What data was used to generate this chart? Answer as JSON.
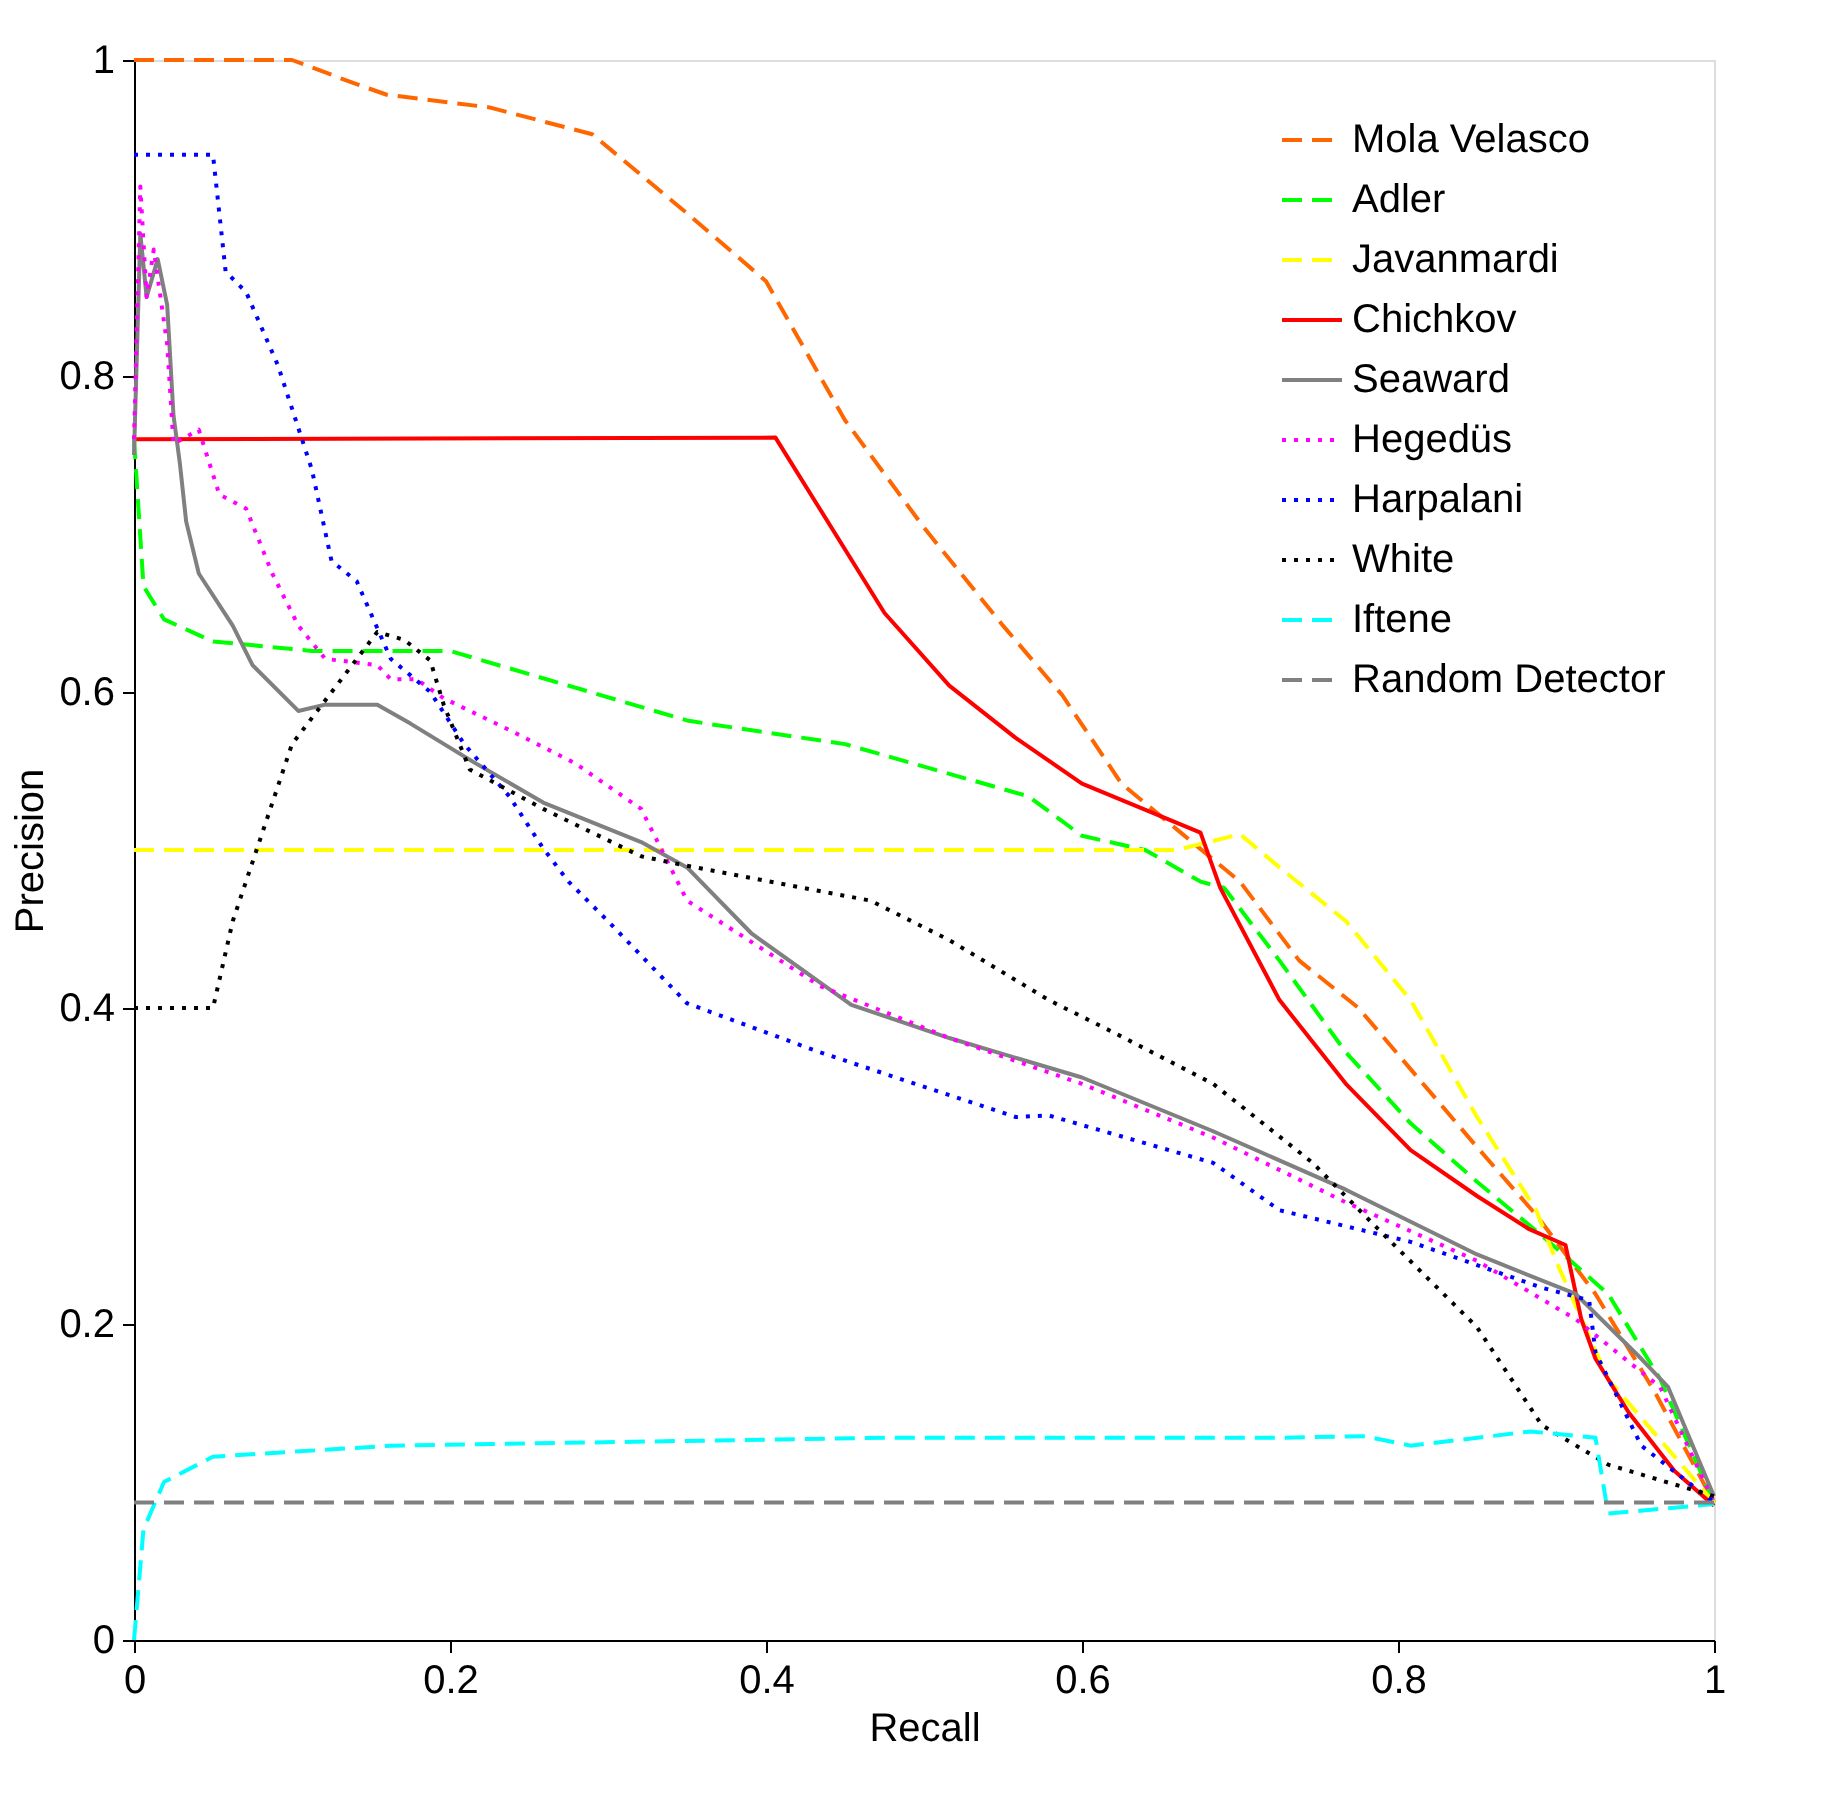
{
  "chart_data": {
    "type": "line",
    "xlabel": "Recall",
    "ylabel": "Precision",
    "xlim": [
      0,
      1
    ],
    "ylim": [
      0,
      1
    ],
    "xticks": [
      0,
      0.2,
      0.4,
      0.6,
      0.8,
      1
    ],
    "yticks": [
      0,
      0.2,
      0.4,
      0.6,
      0.8,
      1
    ],
    "grid": false,
    "legend": "top right",
    "marker": "none",
    "series": [
      {
        "name": "Mola Velasco",
        "color": "#ff6600",
        "line_style": "dashed",
        "x": [
          0,
          0.1,
          0.14,
          0.16,
          0.225,
          0.29,
          0.35,
          0.4,
          0.45,
          0.5,
          0.55,
          0.5875,
          0.625,
          0.6625,
          0.7,
          0.7375,
          0.775,
          0.8125,
          0.85,
          0.8875,
          0.925,
          0.9625,
          1
        ],
        "values": [
          1,
          1,
          0.985,
          0.978,
          0.97,
          0.953,
          0.903,
          0.86,
          0.772,
          0.704,
          0.642,
          0.598,
          0.542,
          0.511,
          0.48,
          0.43,
          0.4,
          0.356,
          0.312,
          0.269,
          0.219,
          0.157,
          0.087
        ]
      },
      {
        "name": "Adler",
        "color": "#00ff00",
        "line_style": "dashed",
        "x": [
          0,
          0.006,
          0.019,
          0.05,
          0.1125,
          0.2,
          0.35,
          0.3625,
          0.45,
          0.566,
          0.6,
          0.64,
          0.675,
          0.69,
          0.725,
          0.767,
          0.808,
          0.85,
          0.891,
          0.933,
          0.966,
          1
        ],
        "values": [
          0.76,
          0.667,
          0.646,
          0.632,
          0.626,
          0.626,
          0.582,
          0.58,
          0.567,
          0.534,
          0.509,
          0.5,
          0.48,
          0.476,
          0.43,
          0.372,
          0.327,
          0.29,
          0.256,
          0.219,
          0.165,
          0.087
        ]
      },
      {
        "name": "Javanmardi",
        "color": "#ffff00",
        "line_style": "dashed",
        "x": [
          0,
          0.66,
          0.7,
          0.725,
          0.767,
          0.808,
          0.85,
          0.8875,
          0.9,
          0.933,
          1
        ],
        "values": [
          0.5,
          0.5,
          0.51,
          0.489,
          0.455,
          0.405,
          0.331,
          0.272,
          0.24,
          0.165,
          0.087
        ]
      },
      {
        "name": "Chichkov",
        "color": "#ff0000",
        "line_style": "solid",
        "x": [
          0,
          0.406,
          0.434,
          0.475,
          0.516,
          0.558,
          0.6,
          0.675,
          0.6875,
          0.725,
          0.767,
          0.808,
          0.85,
          0.883,
          0.906,
          0.916,
          0.925,
          0.946,
          0.975,
          1
        ],
        "values": [
          0.76,
          0.761,
          0.716,
          0.65,
          0.604,
          0.571,
          0.542,
          0.511,
          0.476,
          0.405,
          0.352,
          0.31,
          0.281,
          0.26,
          0.25,
          0.203,
          0.178,
          0.144,
          0.107,
          0.085
        ]
      },
      {
        "name": "Seaward",
        "color": "#808080",
        "line_style": "solid",
        "x": [
          0,
          0.004,
          0.008,
          0.015,
          0.021,
          0.025,
          0.029,
          0.033,
          0.041,
          0.0625,
          0.075,
          0.104,
          0.121,
          0.154,
          0.175,
          0.216,
          0.259,
          0.321,
          0.35,
          0.391,
          0.454,
          0.516,
          0.6,
          0.683,
          0.767,
          0.85,
          0.9125,
          0.954,
          0.971,
          1
        ],
        "values": [
          0.75,
          0.89,
          0.85,
          0.874,
          0.845,
          0.775,
          0.745,
          0.708,
          0.675,
          0.642,
          0.617,
          0.588,
          0.592,
          0.592,
          0.58,
          0.555,
          0.53,
          0.505,
          0.489,
          0.447,
          0.402,
          0.381,
          0.356,
          0.322,
          0.285,
          0.244,
          0.219,
          0.178,
          0.16,
          0.091
        ]
      },
      {
        "name": "Hegedüs",
        "color": "#ff00ff",
        "line_style": "dotted",
        "x": [
          0,
          0.004,
          0.008,
          0.0125,
          0.021,
          0.025,
          0.041,
          0.054,
          0.071,
          0.0875,
          0.104,
          0.121,
          0.154,
          0.1625,
          0.179,
          0.196,
          0.2375,
          0.279,
          0.321,
          0.35,
          0.434,
          0.516,
          0.6,
          0.683,
          0.767,
          0.85,
          0.9125,
          0.966,
          1
        ],
        "values": [
          0.76,
          0.92,
          0.85,
          0.88,
          0.82,
          0.757,
          0.766,
          0.725,
          0.716,
          0.675,
          0.642,
          0.621,
          0.617,
          0.608,
          0.608,
          0.596,
          0.576,
          0.555,
          0.526,
          0.468,
          0.414,
          0.381,
          0.352,
          0.318,
          0.277,
          0.24,
          0.203,
          0.16,
          0.087
        ]
      },
      {
        "name": "Harpalani",
        "color": "#0000ff",
        "line_style": "dotted",
        "x": [
          0,
          0.05,
          0.058,
          0.071,
          0.091,
          0.1125,
          0.125,
          0.141,
          0.1625,
          0.1875,
          0.209,
          0.2375,
          0.259,
          0.275,
          0.3,
          0.35,
          0.434,
          0.558,
          0.579,
          0.683,
          0.725,
          0.808,
          0.891,
          0.921,
          0.925,
          0.954,
          1
        ],
        "values": [
          0.94,
          0.94,
          0.866,
          0.853,
          0.807,
          0.741,
          0.683,
          0.67,
          0.621,
          0.6,
          0.567,
          0.534,
          0.501,
          0.48,
          0.455,
          0.403,
          0.372,
          0.331,
          0.332,
          0.302,
          0.272,
          0.252,
          0.223,
          0.215,
          0.182,
          0.123,
          0.087
        ]
      },
      {
        "name": "White",
        "color": "#000000",
        "line_style": "dotted",
        "x": [
          0,
          0.05,
          0.0625,
          0.1,
          0.154,
          0.171,
          0.1875,
          0.196,
          0.2125,
          0.259,
          0.321,
          0.35,
          0.434,
          0.466,
          0.516,
          0.579,
          0.621,
          0.683,
          0.746,
          0.7875,
          0.85,
          0.891,
          0.933,
          1
        ],
        "values": [
          0.4,
          0.4,
          0.455,
          0.567,
          0.638,
          0.633,
          0.62,
          0.592,
          0.551,
          0.526,
          0.496,
          0.49,
          0.474,
          0.468,
          0.443,
          0.405,
          0.384,
          0.352,
          0.302,
          0.26,
          0.198,
          0.136,
          0.111,
          0.091
        ]
      },
      {
        "name": "Iftene",
        "color": "#00ffff",
        "line_style": "dashed",
        "x": [
          0,
          0.006,
          0.019,
          0.05,
          0.1625,
          0.475,
          0.725,
          0.779,
          0.808,
          0.884,
          0.925,
          0.933,
          1
        ],
        "values": [
          0,
          0.07,
          0.1,
          0.116,
          0.123,
          0.128,
          0.128,
          0.129,
          0.123,
          0.132,
          0.128,
          0.08,
          0.086
        ]
      },
      {
        "name": "Random Detector",
        "color": "#808080",
        "line_style": "dashed",
        "x": [
          0,
          1
        ],
        "values": [
          0.087,
          0.087
        ]
      }
    ]
  }
}
